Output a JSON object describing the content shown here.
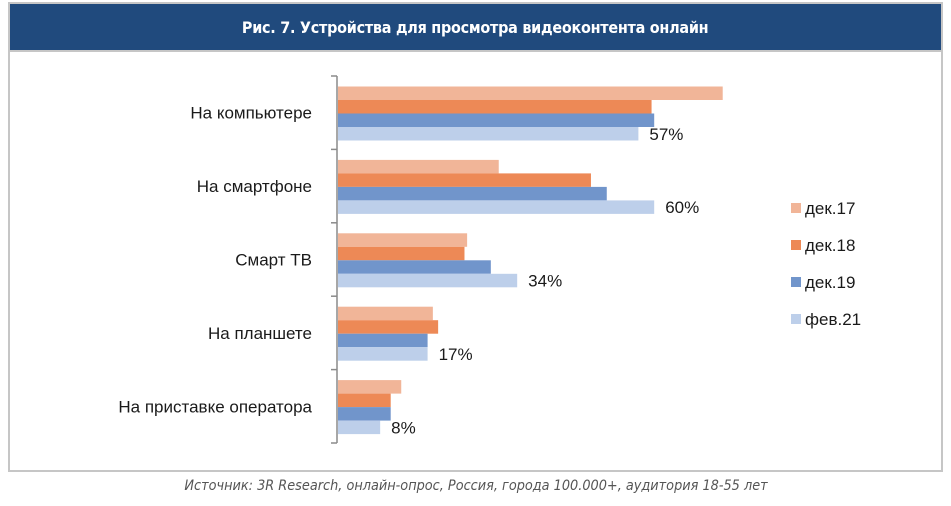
{
  "chart_data": {
    "type": "bar",
    "orientation": "horizontal",
    "title": "Рис. 7. Устройства для просмотра видеоконтента онлайн",
    "categories": [
      "На компьютере",
      "На смартфоне",
      "Смарт ТВ",
      "На планшете",
      "На приставке оператора"
    ],
    "series": [
      {
        "name": "дек.17",
        "color": "#f1b598",
        "values": [
          73,
          30.5,
          24.5,
          18,
          12
        ]
      },
      {
        "name": "дек.18",
        "color": "#ed8956",
        "values": [
          59.5,
          48,
          24,
          19,
          10
        ]
      },
      {
        "name": "дек.19",
        "color": "#7195cb",
        "values": [
          60,
          51,
          29,
          17,
          10
        ]
      },
      {
        "name": "фев.21",
        "color": "#bdcfea",
        "values": [
          57,
          60,
          34,
          17,
          8
        ]
      }
    ],
    "data_labels": [
      "57%",
      "60%",
      "34%",
      "17%",
      "8%"
    ],
    "data_label_series": "фев.21",
    "xlim": [
      0,
      80
    ],
    "xlabel": "",
    "ylabel": "",
    "grid": false,
    "legend_position": "right"
  },
  "header": {
    "title": "Рис. 7. Устройства для просмотра видеоконтента онлайн",
    "color": "#204a7d"
  },
  "footer": {
    "source": "Источник: 3R Research, онлайн-опрос, Россия, города 100.000+, аудитория 18-55 лет"
  }
}
